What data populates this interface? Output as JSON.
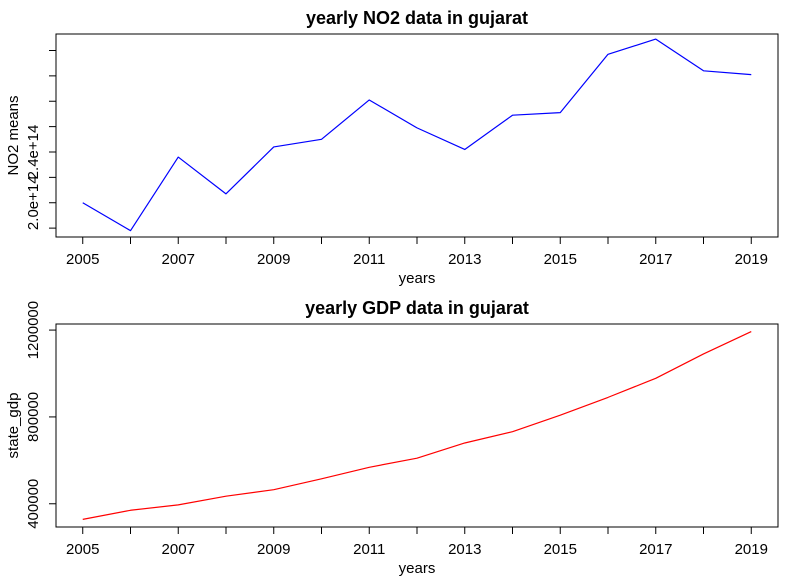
{
  "chart_data": [
    {
      "type": "line",
      "title": "yearly NO2 data in gujarat",
      "xlabel": "years",
      "ylabel": "NO2 means",
      "x": [
        2005,
        2006,
        2007,
        2008,
        2009,
        2010,
        2011,
        2012,
        2013,
        2014,
        2015,
        2016,
        2017,
        2018,
        2019
      ],
      "series": [
        {
          "values": [
            200000000000000.0,
            178000000000000.0,
            236000000000000.0,
            207000000000000.0,
            244000000000000.0,
            250000000000000.0,
            281000000000000.0,
            259000000000000.0,
            242000000000000.0,
            269000000000000.0,
            271000000000000.0,
            317000000000000.0,
            329000000000000.0,
            304000000000000.0,
            301000000000000.0
          ],
          "color": "#0000ff"
        }
      ],
      "xticks": [
        2005,
        2007,
        2009,
        2011,
        2013,
        2015,
        2017,
        2019
      ],
      "xtick_labels": [
        "2005",
        "2007",
        "2009",
        "2011",
        "2013",
        "2015",
        "2017",
        "2019"
      ],
      "xlim": [
        2004.44,
        2019.56
      ],
      "yticks": [
        180000000000000.0,
        200000000000000.0,
        220000000000000.0,
        240000000000000.0,
        260000000000000.0,
        280000000000000.0,
        300000000000000.0,
        320000000000000.0
      ],
      "ytick_labels": [
        "",
        "2.0e+14",
        "",
        "2.4e+14",
        "",
        "",
        "",
        ""
      ],
      "ylim": [
        173000000000000.0,
        333000000000000.0
      ],
      "grid": false,
      "legend": "none"
    },
    {
      "type": "line",
      "title": "yearly GDP data in gujarat",
      "xlabel": "years",
      "ylabel": "state_gdp",
      "x": [
        2005,
        2006,
        2007,
        2008,
        2009,
        2010,
        2011,
        2012,
        2013,
        2014,
        2015,
        2016,
        2017,
        2018,
        2019
      ],
      "series": [
        {
          "values": [
            328000,
            370000,
            395000,
            435000,
            465000,
            515000,
            568000,
            610000,
            680000,
            732000,
            808000,
            890000,
            978000,
            1090000,
            1193000
          ],
          "color": "#ff0000"
        }
      ],
      "xticks": [
        2005,
        2007,
        2009,
        2011,
        2013,
        2015,
        2017,
        2019
      ],
      "xtick_labels": [
        "2005",
        "2007",
        "2009",
        "2011",
        "2013",
        "2015",
        "2017",
        "2019"
      ],
      "xlim": [
        2004.44,
        2019.56
      ],
      "yticks": [
        400000,
        800000,
        1200000
      ],
      "ytick_labels": [
        "400000",
        "800000",
        "1200000"
      ],
      "ylim": [
        293000,
        1228000
      ],
      "grid": false,
      "legend": "none"
    }
  ]
}
